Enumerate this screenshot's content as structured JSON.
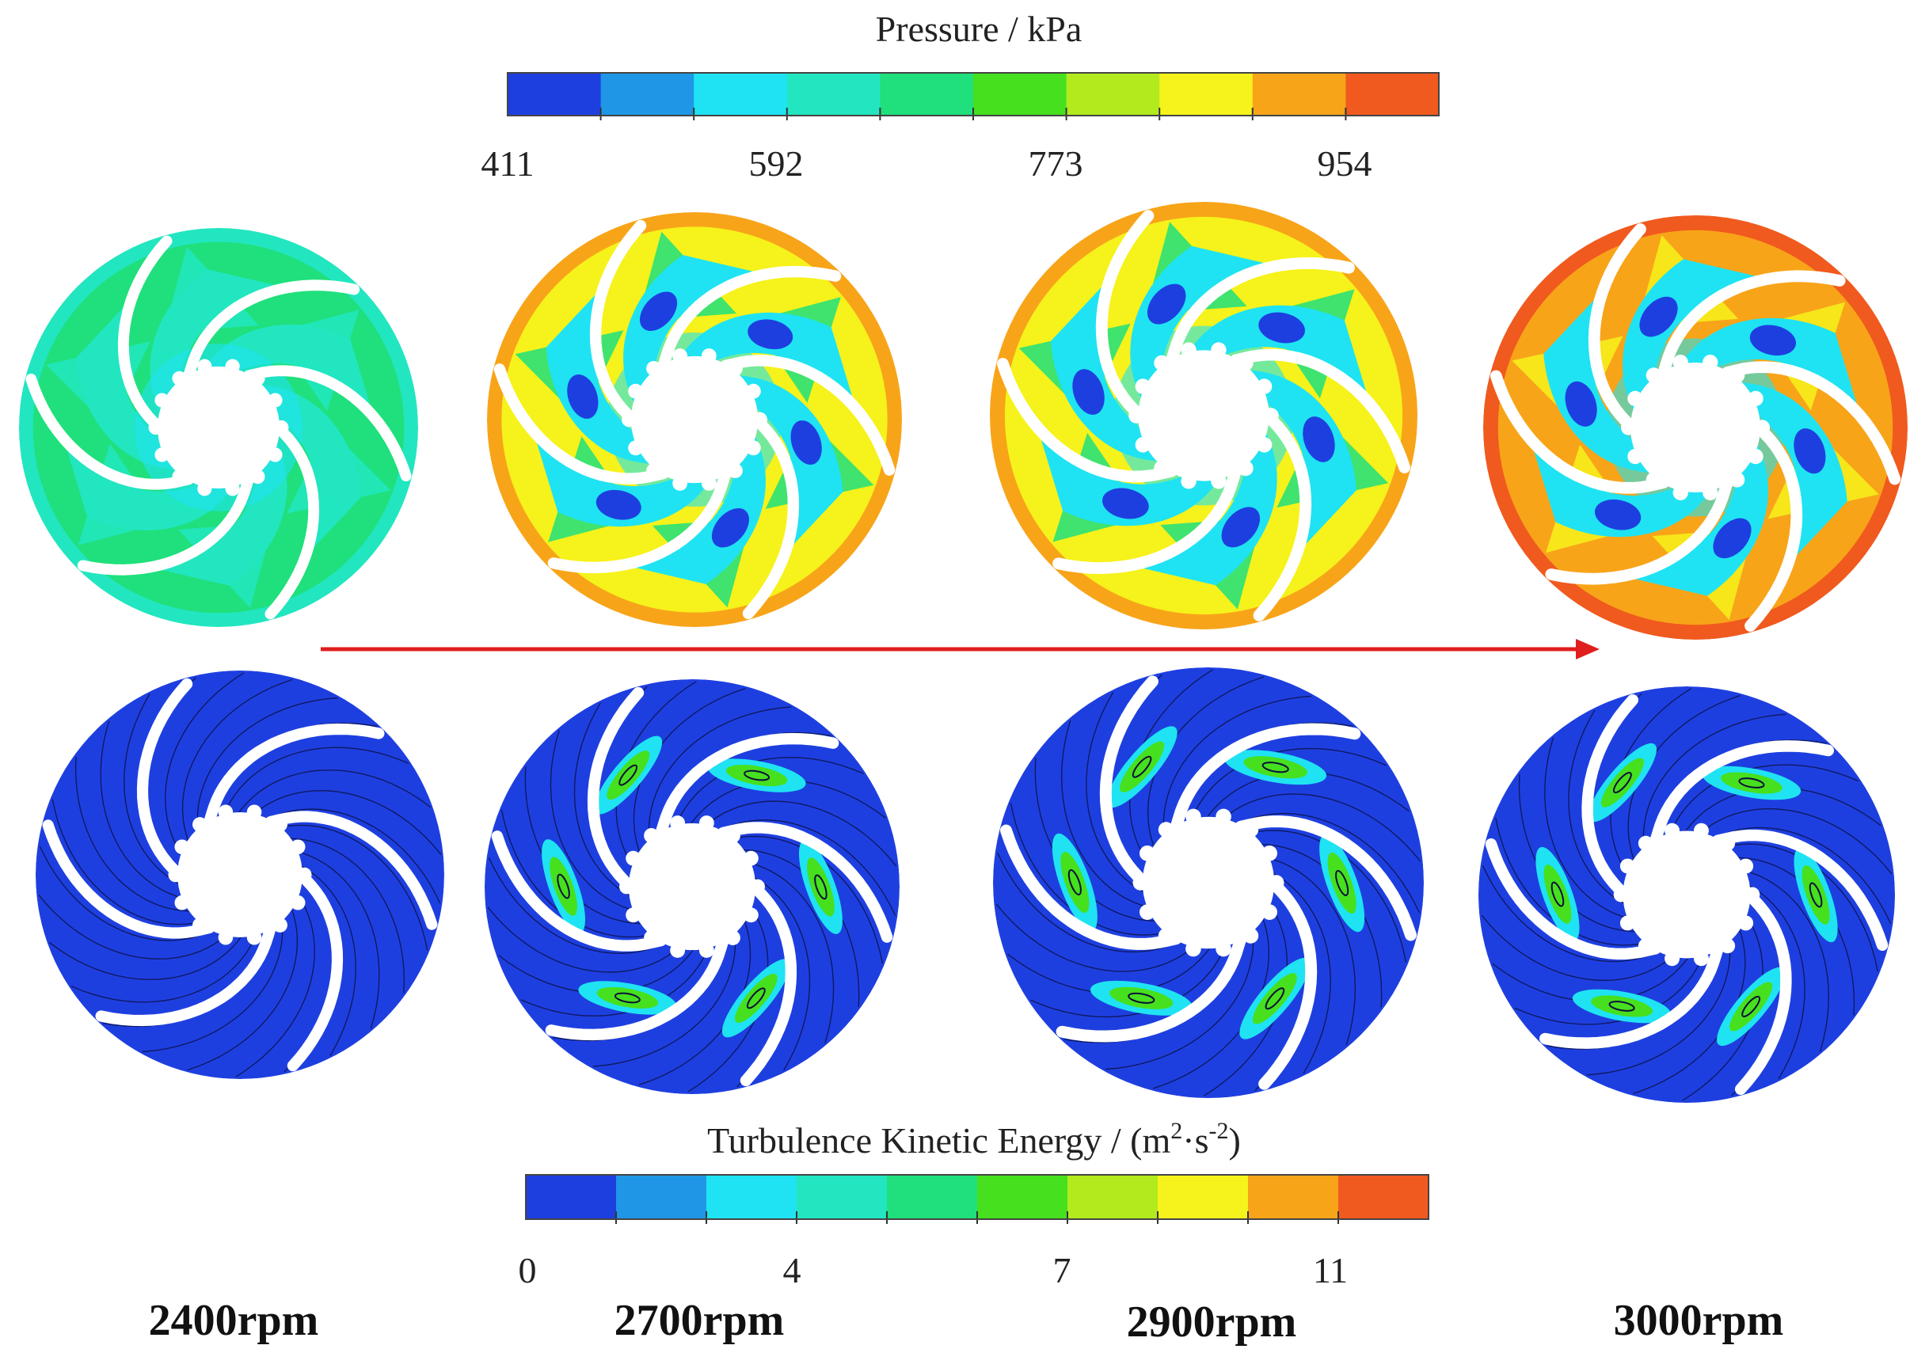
{
  "pressure_scale": {
    "title": "Pressure / kPa",
    "ticks": [
      "411",
      "592",
      "773",
      "954"
    ],
    "colors": [
      "#1e3fe0",
      "#1f97e6",
      "#1fe3f2",
      "#22e6c0",
      "#1fe07c",
      "#46e01e",
      "#b2ea1e",
      "#f6f21b",
      "#f8a419",
      "#f05a1e"
    ]
  },
  "tke_scale": {
    "title_main": "Turbulence Kinetic Energy / (m",
    "sup1": "2",
    "title_dot": "·s",
    "sup2": "-2",
    "title_end": ")",
    "ticks": [
      "0",
      "4",
      "7",
      "11"
    ],
    "colors": [
      "#1e3fe0",
      "#1f97e6",
      "#1fe3f2",
      "#22e6c0",
      "#1fe07c",
      "#46e01e",
      "#b2ea1e",
      "#f6f21b",
      "#f8a419",
      "#f05a1e"
    ]
  },
  "speeds": [
    "2400rpm",
    "2700rpm",
    "2900rpm",
    "3000rpm"
  ],
  "pressure_maps": [
    {
      "base": "#1fe07c",
      "inner": "#22e6c0",
      "eye": "#1fe3f2",
      "rim": "#22e6c0",
      "vertex": "#22e6c0",
      "blob": null
    },
    {
      "base": "#f6f21b",
      "inner": "#1fe3f2",
      "eye": "#1fe3f2",
      "rim": "#f8a419",
      "vertex": "#1fe07c",
      "blob": "#1e3fe0"
    },
    {
      "base": "#f6f21b",
      "inner": "#1fe3f2",
      "eye": "#1fe3f2",
      "rim": "#f8a419",
      "vertex": "#1fe07c",
      "blob": "#1e3fe0"
    },
    {
      "base": "#f8a419",
      "inner": "#1fe3f2",
      "eye": "#1fe3f2",
      "rim": "#f05a1e",
      "vertex": "#f6f21b",
      "blob": "#1e3fe0"
    }
  ],
  "tke_maps": [
    {
      "base": "#1e3fe0",
      "hot": null
    },
    {
      "base": "#1e3fe0",
      "hot": "#46e01e"
    },
    {
      "base": "#1e3fe0",
      "hot": "#46e01e"
    },
    {
      "base": "#1e3fe0",
      "hot": "#46e01e"
    }
  ],
  "arrow_color": "#e01e1e"
}
